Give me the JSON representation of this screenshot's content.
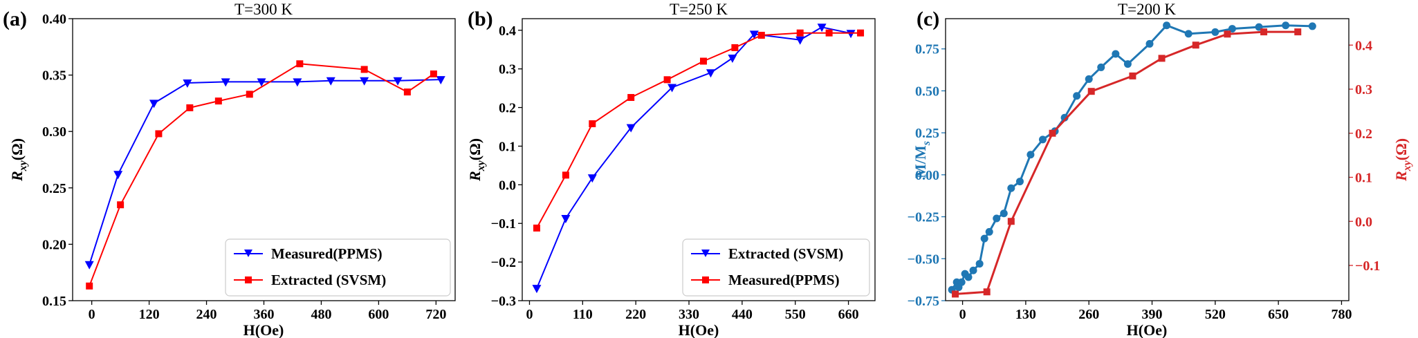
{
  "chart_data": [
    {
      "type": "line",
      "panel_label": "(a)",
      "title": "T=300 K",
      "xlabel": "H(Oe)",
      "ylabel": "R",
      "ylabel_sub": "xy",
      "ylabel_unit": "(Ω)",
      "xlim": [
        -40,
        760
      ],
      "ylim": [
        0.15,
        0.4
      ],
      "xticks": [
        0,
        120,
        240,
        360,
        480,
        600,
        720
      ],
      "xticklabels": [
        "0",
        "120",
        "240",
        "360",
        "480",
        "600",
        "720"
      ],
      "yticks": [
        0.15,
        0.2,
        0.25,
        0.3,
        0.35,
        0.4
      ],
      "yticklabels": [
        "0.15",
        "0.20",
        "0.25",
        "0.30",
        "0.35",
        "0.40"
      ],
      "legend_position": "bottom-right",
      "series": [
        {
          "name": "Measured(PPMS)",
          "color": "#0000ff",
          "marker": "triangle-down",
          "x": [
            -5,
            55,
            130,
            200,
            280,
            355,
            430,
            500,
            570,
            640,
            730
          ],
          "y": [
            0.182,
            0.262,
            0.325,
            0.343,
            0.344,
            0.344,
            0.344,
            0.345,
            0.345,
            0.345,
            0.346
          ]
        },
        {
          "name": "Extracted (SVSM)",
          "color": "#ff0000",
          "marker": "square",
          "x": [
            -5,
            60,
            140,
            205,
            265,
            330,
            435,
            570,
            660,
            715
          ],
          "y": [
            0.163,
            0.235,
            0.298,
            0.321,
            0.327,
            0.333,
            0.36,
            0.355,
            0.335,
            0.351
          ]
        }
      ]
    },
    {
      "type": "line",
      "panel_label": "(b)",
      "title": "T=250 K",
      "xlabel": "H(Oe)",
      "ylabel": "R",
      "ylabel_sub": "xy",
      "ylabel_unit": "(Ω)",
      "xlim": [
        -15,
        715
      ],
      "ylim": [
        -0.3,
        0.43
      ],
      "xticks": [
        0,
        110,
        220,
        330,
        440,
        550,
        660
      ],
      "xticklabels": [
        "0",
        "110",
        "220",
        "330",
        "440",
        "550",
        "660"
      ],
      "yticks": [
        -0.3,
        -0.2,
        -0.1,
        0.0,
        0.1,
        0.2,
        0.3,
        0.4
      ],
      "yticklabels": [
        "−0.3",
        "−0.2",
        "−0.1",
        "0.0",
        "0.1",
        "0.2",
        "0.3",
        "0.4"
      ],
      "legend_position": "bottom-right",
      "series": [
        {
          "name": "Extracted (SVSM)",
          "color": "#0000ff",
          "marker": "triangle-down",
          "x": [
            15,
            75,
            130,
            210,
            295,
            375,
            420,
            465,
            560,
            605,
            665
          ],
          "y": [
            -0.268,
            -0.087,
            0.018,
            0.148,
            0.252,
            0.29,
            0.328,
            0.39,
            0.375,
            0.408,
            0.392
          ]
        },
        {
          "name": "Measured(PPMS)",
          "color": "#ff0000",
          "marker": "square",
          "x": [
            15,
            75,
            130,
            210,
            285,
            360,
            425,
            480,
            560,
            620,
            685
          ],
          "y": [
            -0.112,
            0.025,
            0.158,
            0.226,
            0.272,
            0.32,
            0.355,
            0.387,
            0.393,
            0.393,
            0.393
          ]
        }
      ]
    },
    {
      "type": "line",
      "panel_label": "(c)",
      "title": "T=200 K",
      "xlabel": "H(Oe)",
      "ylabel_left": "M/M",
      "ylabel_left_sub": "s",
      "ylabel_right": "R",
      "ylabel_right_sub": "xy",
      "ylabel_right_unit": "(Ω)",
      "xlim": [
        -35,
        795
      ],
      "ylim_left": [
        -0.75,
        0.93
      ],
      "ylim_right": [
        -0.18,
        0.46
      ],
      "xticks": [
        0,
        130,
        260,
        390,
        520,
        650,
        780
      ],
      "xticklabels": [
        "0",
        "130",
        "260",
        "390",
        "520",
        "650",
        "780"
      ],
      "yticks_left": [
        -0.75,
        -0.5,
        -0.25,
        0.0,
        0.25,
        0.5,
        0.75
      ],
      "yticklabels_left": [
        "−0.75",
        "−0.50",
        "−0.25",
        "0.00",
        "0.25",
        "0.50",
        "0.75"
      ],
      "yticks_right": [
        -0.1,
        0.0,
        0.1,
        0.2,
        0.3,
        0.4
      ],
      "yticklabels_right": [
        "−0.1",
        "0.0",
        "0.1",
        "0.2",
        "0.3",
        "0.4"
      ],
      "left_axis_color": "#1f77b4",
      "right_axis_color": "#d62728",
      "series": [
        {
          "name": "M/Ms",
          "axis": "left",
          "color": "#1f77b4",
          "marker": "circle",
          "x": [
            -22,
            -12,
            -8,
            -2,
            5,
            12,
            22,
            35,
            45,
            55,
            70,
            85,
            100,
            118,
            140,
            165,
            190,
            210,
            235,
            260,
            285,
            315,
            340,
            385,
            420,
            465,
            520,
            555,
            610,
            665,
            720
          ],
          "y": [
            -0.685,
            -0.64,
            -0.67,
            -0.64,
            -0.59,
            -0.61,
            -0.57,
            -0.53,
            -0.38,
            -0.34,
            -0.26,
            -0.23,
            -0.08,
            -0.04,
            0.12,
            0.21,
            0.26,
            0.34,
            0.47,
            0.57,
            0.64,
            0.72,
            0.66,
            0.78,
            0.89,
            0.84,
            0.85,
            0.87,
            0.88,
            0.89,
            0.885
          ]
        },
        {
          "name": "Rxy",
          "axis": "right",
          "color": "#d62728",
          "marker": "square",
          "x": [
            -15,
            50,
            100,
            185,
            265,
            350,
            410,
            480,
            545,
            620,
            690
          ],
          "y": [
            -0.165,
            -0.16,
            0.0,
            0.2,
            0.295,
            0.33,
            0.37,
            0.4,
            0.425,
            0.43,
            0.43
          ]
        }
      ]
    }
  ]
}
